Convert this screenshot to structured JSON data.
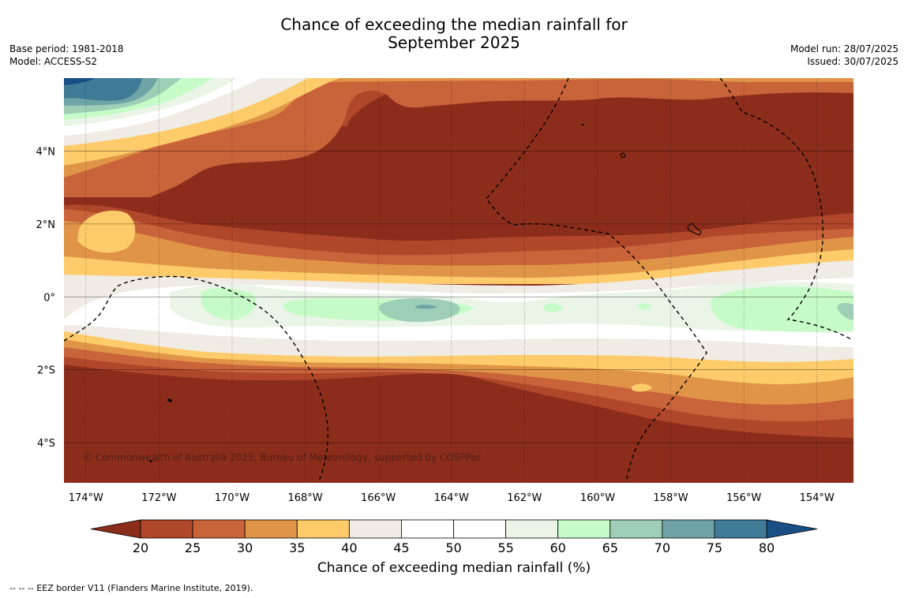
{
  "title": {
    "line1": "Chance of exceeding the median rainfall for",
    "line2": "September 2025"
  },
  "meta_left": {
    "base_period": "Base period: 1981-2018",
    "model": "Model: ACCESS-S2"
  },
  "meta_right": {
    "model_run": "Model run: 28/07/2025",
    "issued": "Issued: 30/07/2025"
  },
  "map": {
    "lon_range": [
      -174.6,
      -153
    ],
    "lat_range": [
      -5.1,
      6
    ],
    "lat_ticks": [
      {
        "value": 4,
        "label": "4°N"
      },
      {
        "value": 2,
        "label": "2°N"
      },
      {
        "value": 0,
        "label": "0°"
      },
      {
        "value": -2,
        "label": "2°S"
      },
      {
        "value": -4,
        "label": "4°S"
      }
    ],
    "lon_ticks": [
      {
        "value": -174,
        "label": "174°W"
      },
      {
        "value": -172,
        "label": "172°W"
      },
      {
        "value": -170,
        "label": "170°W"
      },
      {
        "value": -168,
        "label": "168°W"
      },
      {
        "value": -166,
        "label": "166°W"
      },
      {
        "value": -164,
        "label": "164°W"
      },
      {
        "value": -162,
        "label": "162°W"
      },
      {
        "value": -160,
        "label": "160°W"
      },
      {
        "value": -158,
        "label": "158°W"
      },
      {
        "value": -156,
        "label": "156°W"
      },
      {
        "value": -154,
        "label": "154°W"
      }
    ],
    "gridlines": true,
    "copyright": "© Commonwealth of Australia 2025, Bureau of Meteorology, supported by COSPPac"
  },
  "colorbar": {
    "label": "Chance of exceeding median rainfall (%)",
    "ticks": [
      "20",
      "25",
      "30",
      "35",
      "40",
      "45",
      "50",
      "55",
      "60",
      "65",
      "70",
      "75",
      "80"
    ],
    "under_color": "#8c2d1c",
    "over_color": "#1a4f86",
    "colors": [
      "#b0472a",
      "#c9633a",
      "#e09447",
      "#fdcb6a",
      "#f0ebe4",
      "#ffffff",
      "#ffffff",
      "#eaf5e8",
      "#c6fbc8",
      "#9ecfb6",
      "#6fa4a6",
      "#3f7a97"
    ]
  },
  "footnote": "--  --  -- EEZ border V11 (Flanders Marine Institute, 2019).",
  "chart_data": {
    "type": "heatmap",
    "x_label": "",
    "y_label": "",
    "legend": "colorbar-bottom",
    "bands_lat_percent": [
      {
        "lat_band": "5°N–6°N west",
        "value": 70
      },
      {
        "lat_band": "4°N–5°N west",
        "value": 45
      },
      {
        "lat_band": "2°N–4°N",
        "value": 22
      },
      {
        "lat_band": "1°N–2°N",
        "value": 33
      },
      {
        "lat_band": "0.5°N–1°N",
        "value": 42
      },
      {
        "lat_band": "1°S–0.5°N",
        "value": 57
      },
      {
        "lat_band": "1.5°S–1°S",
        "value": 43
      },
      {
        "lat_band": "2°S–1.5°S",
        "value": 32
      },
      {
        "lat_band": "5°S–2°S",
        "value": 18
      }
    ]
  }
}
